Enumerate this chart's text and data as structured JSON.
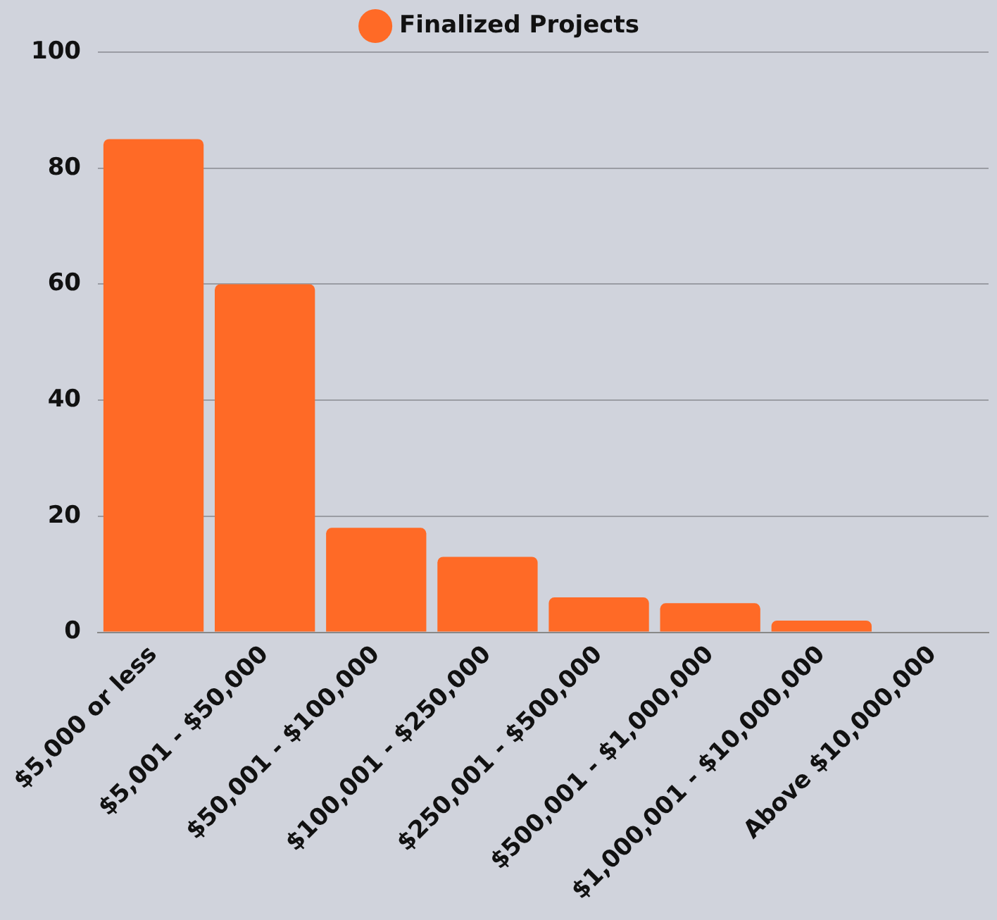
{
  "chart_data": {
    "type": "bar",
    "categories": [
      "$5,000 or less",
      "$5,001 - $50,000",
      "$50,001 - $100,000",
      "$100,001 - $250,000",
      "$250,001 - $500,000",
      "$500,001 - $1,000,000",
      "$1,000,001 - $10,000,000",
      "Above $10,000,000"
    ],
    "series": [
      {
        "name": "Finalized Projects",
        "color": "#ff6a26",
        "values": [
          85,
          60,
          18,
          13,
          6,
          5,
          2,
          0
        ]
      }
    ],
    "ylim": [
      0,
      100
    ],
    "yticks": [
      0,
      20,
      40,
      60,
      80,
      100
    ],
    "grid": "y",
    "legend": "top"
  }
}
